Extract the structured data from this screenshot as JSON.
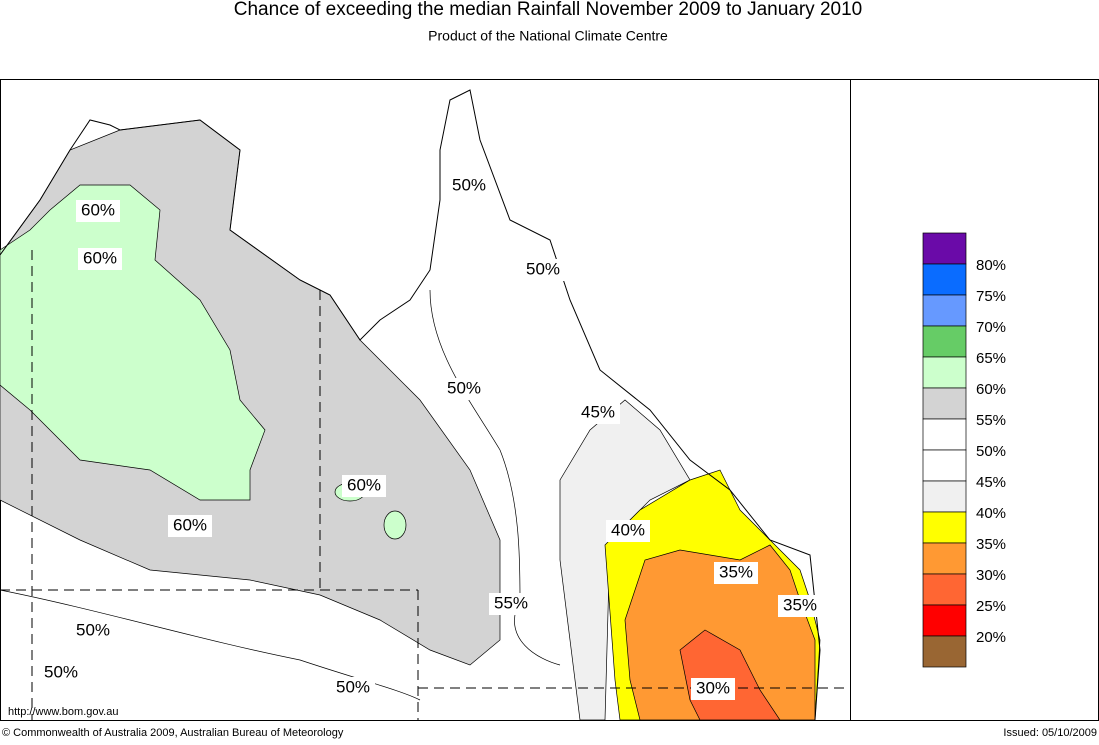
{
  "header": {
    "title": "Chance of exceeding the median Rainfall November 2009 to January 2010",
    "subtitle": "Product of the National Climate Centre"
  },
  "map": {
    "labels": [
      "60%",
      "60%",
      "50%",
      "50%",
      "50%",
      "45%",
      "60%",
      "60%",
      "40%",
      "35%",
      "35%",
      "55%",
      "50%",
      "50%",
      "50%",
      "30%"
    ],
    "url": "http://www.bom.gov.au"
  },
  "legend": {
    "colors": [
      "#6a0aa8",
      "#0a6cff",
      "#6699ff",
      "#66cc66",
      "#ccffcc",
      "#d3d3d3",
      "#ffffff",
      "#ffffff",
      "#f0f0f0",
      "#ffff00",
      "#ff9933",
      "#ff6633",
      "#ff0000",
      "#996633"
    ],
    "labels": [
      "80%",
      "75%",
      "70%",
      "65%",
      "60%",
      "55%",
      "50%",
      "45%",
      "40%",
      "35%",
      "30%",
      "25%",
      "20%"
    ]
  },
  "footer": {
    "copyright": "© Commonwealth of Australia 2009, Australian Bureau of Meteorology",
    "issued": "Issued: 05/10/2009"
  }
}
